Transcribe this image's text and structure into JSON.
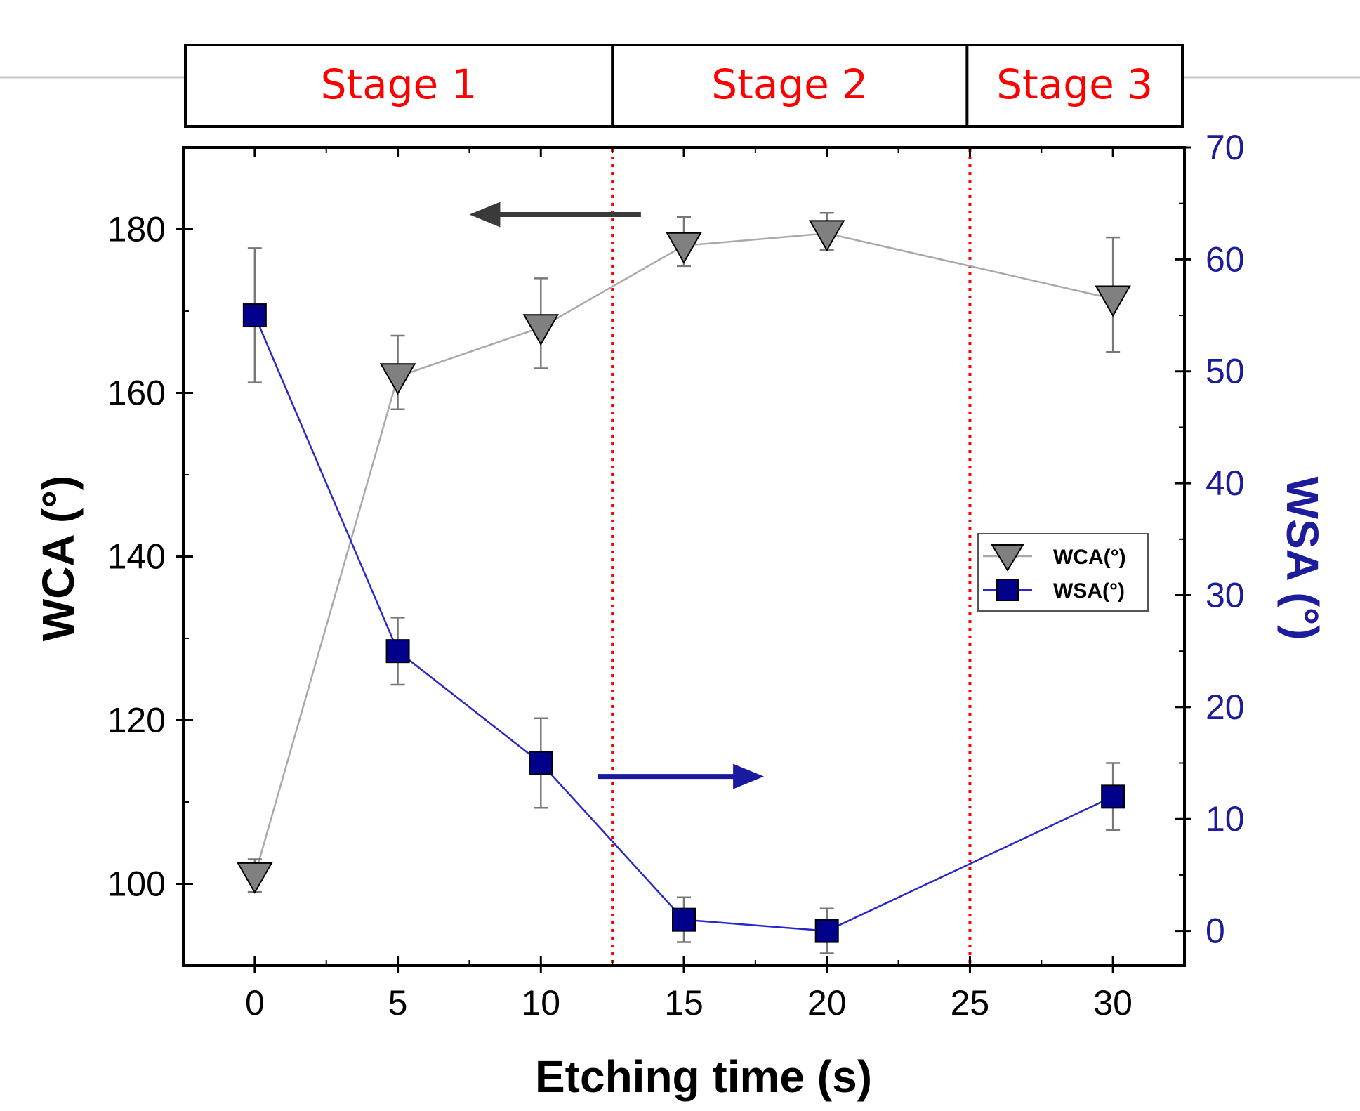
{
  "chart_data": {
    "type": "line",
    "title": "",
    "xlabel": "Etching time (s)",
    "ylabel_left": "WCA (°)",
    "ylabel_right": "WSA (°)",
    "xlim": [
      -2.5,
      32.5
    ],
    "ylim_left": [
      90,
      190
    ],
    "ylim_right": [
      -3.1,
      70
    ],
    "x_ticks": [
      0,
      5,
      10,
      15,
      20,
      25,
      30
    ],
    "y_ticks_left": [
      100,
      120,
      140,
      160,
      180
    ],
    "y_ticks_right": [
      0,
      10,
      20,
      30,
      40,
      50,
      60,
      70
    ],
    "grid": false,
    "legend_position": "center-right",
    "colors": {
      "wca": "#808080",
      "wca_line": "#a9a9a9",
      "wsa": "#00008b",
      "wsa_line": "#2828c8",
      "stage_text": "#ff0000",
      "stage_divider": "#ff0000",
      "right_axis": "#1c1c9c",
      "arrow_left": "#3a3a3a",
      "arrow_right": "#1a1aa0"
    },
    "series": [
      {
        "name": "WCA(°)",
        "axis": "left",
        "marker": "triangle-down",
        "x": [
          0,
          5,
          10,
          15,
          20,
          30
        ],
        "y": [
          101,
          162,
          168,
          178,
          179.5,
          171.5
        ],
        "err_lo": [
          99,
          158,
          163,
          175.5,
          177.5,
          165
        ],
        "err_hi": [
          103,
          167,
          174,
          181.5,
          182,
          179
        ]
      },
      {
        "name": "WSA(°)",
        "axis": "right",
        "marker": "square",
        "x": [
          0,
          5,
          10,
          15,
          20,
          30
        ],
        "y": [
          55,
          25,
          15,
          1,
          0,
          12
        ],
        "err_lo": [
          49,
          22,
          11,
          -1,
          -2,
          9
        ],
        "err_hi": [
          61,
          28,
          19,
          3,
          2,
          15
        ]
      }
    ],
    "stages": [
      {
        "label": "Stage 1",
        "x_start": -2.5,
        "x_end": 12.5
      },
      {
        "label": "Stage 2",
        "x_start": 12.5,
        "x_end": 24.9
      },
      {
        "label": "Stage 3",
        "x_start": 24.9,
        "x_end": 32.5
      }
    ],
    "stage_dividers": [
      12.5,
      25
    ],
    "annotations": [
      {
        "kind": "arrow",
        "direction": "left",
        "series": "WCA(°)",
        "axis": "left",
        "x_from": 13.5,
        "x_to": 7.5,
        "y": 181.8
      },
      {
        "kind": "arrow",
        "direction": "right",
        "series": "WSA(°)",
        "axis": "right",
        "x_from": 12,
        "x_to": 17.8,
        "y": 13.8
      }
    ]
  }
}
